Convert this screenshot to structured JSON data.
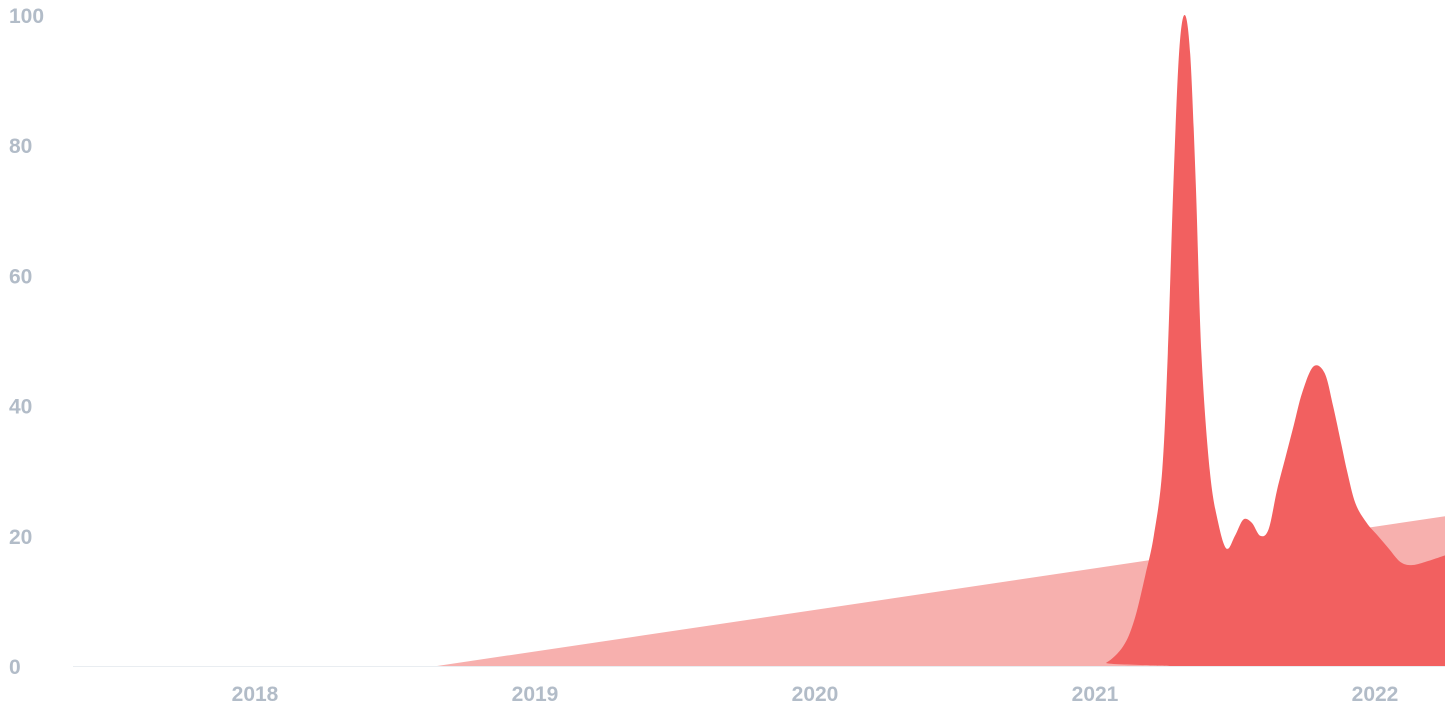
{
  "chart_data": {
    "type": "area",
    "title": "",
    "xlabel": "",
    "ylabel": "",
    "ylim": [
      0,
      100
    ],
    "xlim": [
      2017.35,
      2022.25
    ],
    "grid": false,
    "legend": "none",
    "y_ticks": [
      {
        "value": 0,
        "label": "0"
      },
      {
        "value": 20,
        "label": "20"
      },
      {
        "value": 40,
        "label": "40"
      },
      {
        "value": 60,
        "label": "60"
      },
      {
        "value": 80,
        "label": "80"
      },
      {
        "value": 100,
        "label": "100"
      }
    ],
    "x_ticks": [
      {
        "value": 2018,
        "label": "2018"
      },
      {
        "value": 2019,
        "label": "2019"
      },
      {
        "value": 2020,
        "label": "2020"
      },
      {
        "value": 2021,
        "label": "2021"
      },
      {
        "value": 2022,
        "label": "2022"
      }
    ],
    "series": [
      {
        "color": "#f7b0ae",
        "x": [
          2017.35,
          2018.65,
          2022.25
        ],
        "y": [
          0,
          0,
          23
        ]
      },
      {
        "color": "#f26060",
        "x": [
          2017.35,
          2020.98,
          2021.04,
          2021.1,
          2021.14,
          2021.18,
          2021.21,
          2021.24,
          2021.26,
          2021.28,
          2021.3,
          2021.32,
          2021.34,
          2021.36,
          2021.38,
          2021.41,
          2021.44,
          2021.47,
          2021.5,
          2021.53,
          2021.56,
          2021.59,
          2021.62,
          2021.65,
          2021.68,
          2021.71,
          2021.74,
          2021.78,
          2021.82,
          2021.85,
          2021.88,
          2021.9,
          2021.93,
          2021.97,
          2022.01,
          2022.05,
          2022.09,
          2022.13,
          2022.18,
          2022.25
        ],
        "y": [
          0,
          0,
          0.5,
          3,
          7,
          14,
          20,
          30,
          48,
          74,
          94,
          100,
          94,
          74,
          48,
          30,
          22,
          18,
          20,
          22.5,
          22,
          20,
          21,
          27,
          32,
          37,
          42,
          46,
          45,
          40,
          34,
          30,
          25,
          22,
          20,
          18,
          16,
          15.5,
          16,
          17
        ]
      }
    ]
  }
}
